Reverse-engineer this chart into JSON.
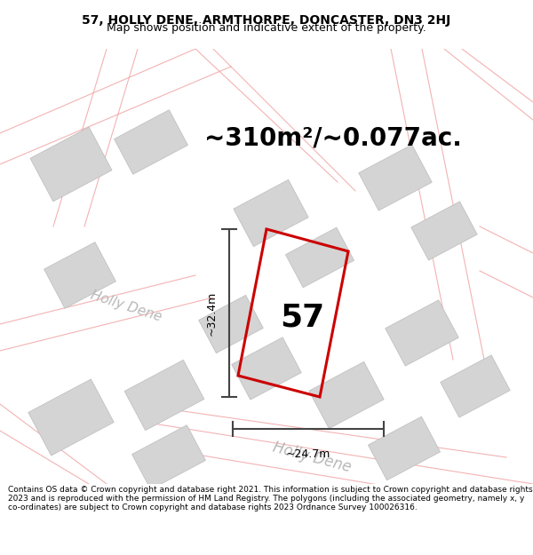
{
  "title_line1": "57, HOLLY DENE, ARMTHORPE, DONCASTER, DN3 2HJ",
  "title_line2": "Map shows position and indicative extent of the property.",
  "area_text": "~310m²/~0.077ac.",
  "plot_number": "57",
  "dim_width": "~24.7m",
  "dim_height": "~32.4m",
  "footer": "Contains OS data © Crown copyright and database right 2021. This information is subject to Crown copyright and database rights 2023 and is reproduced with the permission of HM Land Registry. The polygons (including the associated geometry, namely x, y co-ordinates) are subject to Crown copyright and database rights 2023 Ordnance Survey 100026316.",
  "bg_color": "#ffffff",
  "map_bg": "#f7f6f6",
  "red_color": "#cc0000",
  "pink_color": "#f0a0a0",
  "gray_building": "#d4d4d4",
  "fig_width": 6.0,
  "fig_height": 6.25,
  "title_fontsize": 10,
  "subtitle_fontsize": 9,
  "area_fontsize": 20,
  "plot_num_fontsize": 26,
  "dim_fontsize": 9,
  "street_fontsize": 11,
  "footer_fontsize": 6.5
}
